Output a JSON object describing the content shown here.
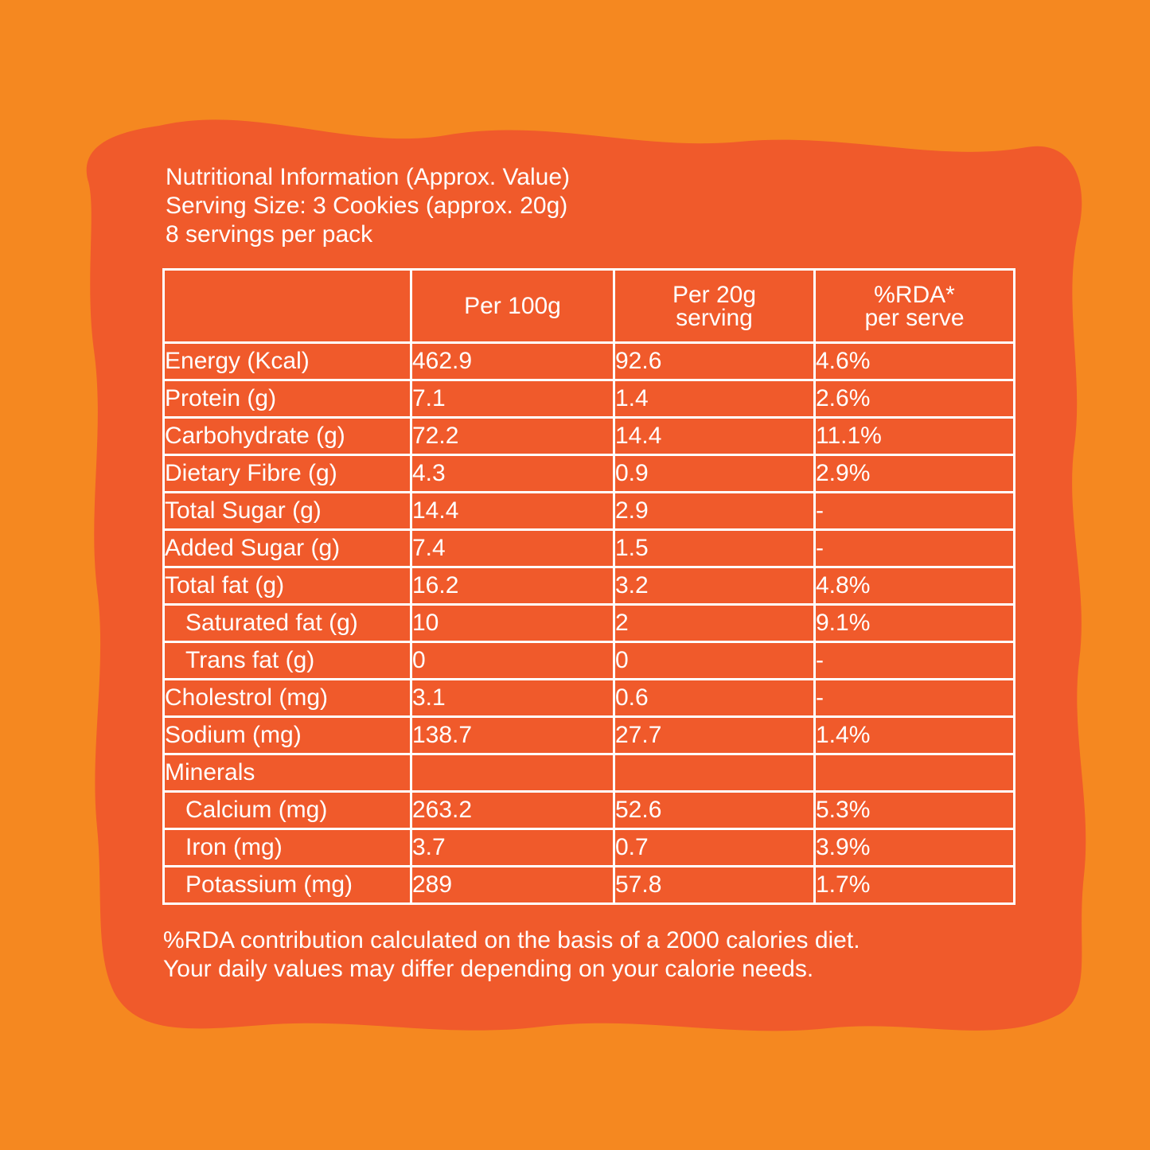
{
  "colors": {
    "background": "#F58820",
    "panel": "#F05A2B",
    "text": "#FFFFFF"
  },
  "heading": {
    "title": "Nutritional Information (Approx. Value)",
    "serving_size": "Serving Size: 3 Cookies (approx. 20g)",
    "servings_per_pack": "8 servings per pack"
  },
  "table": {
    "headers": {
      "col1": "",
      "col2": "Per 100g",
      "col3_line1": "Per 20g",
      "col3_line2": "serving",
      "col4_line1": "%RDA*",
      "col4_line2": "per serve"
    },
    "rows": [
      {
        "name": "Energy (Kcal)",
        "per100": "462.9",
        "per20": "92.6",
        "rda": "4.6%"
      },
      {
        "name": "Protein (g)",
        "per100": "7.1",
        "per20": "1.4",
        "rda": "2.6%"
      },
      {
        "name": "Carbohydrate (g)",
        "per100": "72.2",
        "per20": "14.4",
        "rda": "11.1%"
      },
      {
        "name": "Dietary Fibre (g)",
        "per100": "4.3",
        "per20": "0.9",
        "rda": "2.9%"
      },
      {
        "name": "Total Sugar (g)",
        "per100": "14.4",
        "per20": "2.9",
        "rda": "-"
      },
      {
        "name": "Added Sugar (g)",
        "per100": "7.4",
        "per20": "1.5",
        "rda": "-"
      },
      {
        "name": "Total fat (g)",
        "per100": "16.2",
        "per20": "3.2",
        "rda": "4.8%"
      },
      {
        "name": "Saturated fat (g)",
        "per100": "10",
        "per20": "2",
        "rda": "9.1%"
      },
      {
        "name": "Trans fat (g)",
        "per100": "0",
        "per20": "0",
        "rda": "-"
      },
      {
        "name": "Cholestrol (mg)",
        "per100": "3.1",
        "per20": "0.6",
        "rda": "-"
      },
      {
        "name": "Sodium (mg)",
        "per100": "138.7",
        "per20": "27.7",
        "rda": "1.4%"
      },
      {
        "name": "Minerals",
        "per100": "",
        "per20": "",
        "rda": ""
      },
      {
        "name": "Calcium (mg)",
        "per100": "263.2",
        "per20": "52.6",
        "rda": "5.3%"
      },
      {
        "name": "Iron (mg)",
        "per100": "3.7",
        "per20": "0.7",
        "rda": "3.9%"
      },
      {
        "name": "Potassium (mg)",
        "per100": "289",
        "per20": "57.8",
        "rda": "1.7%"
      }
    ]
  },
  "footer": {
    "line1": "%RDA contribution calculated on the basis of a 2000 calories diet.",
    "line2": "Your daily values may differ depending on your calorie needs."
  }
}
